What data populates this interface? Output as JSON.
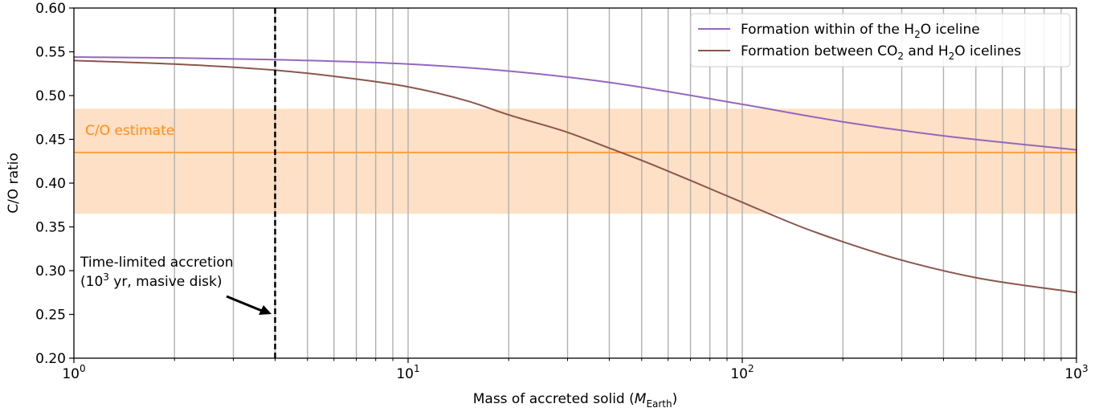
{
  "chart_data": {
    "type": "line",
    "xscale": "log",
    "xlim": [
      1,
      1000
    ],
    "ylim": [
      0.2,
      0.6
    ],
    "xlabel": "Mass of accreted solid (M_Earth)",
    "xlabel_parts": {
      "main": "Mass of accreted solid (",
      "italic": "M",
      "sub": "Earth",
      "close": ")"
    },
    "ylabel": "C/O ratio",
    "grid": "vertical minor and major lines on x",
    "x_ticks": [
      {
        "value": 1,
        "base": "10",
        "exp": "0"
      },
      {
        "value": 10,
        "base": "10",
        "exp": "1"
      },
      {
        "value": 100,
        "base": "10",
        "exp": "2"
      },
      {
        "value": 1000,
        "base": "10",
        "exp": "3"
      }
    ],
    "y_ticks": [
      "0.20",
      "0.25",
      "0.30",
      "0.35",
      "0.40",
      "0.45",
      "0.50",
      "0.55",
      "0.60"
    ],
    "legend_position": "top-right",
    "series": [
      {
        "name": "Formation within of the H2O iceline",
        "name_parts": {
          "pre": "Formation within of the H",
          "sub": "2",
          "post": "O iceline"
        },
        "color": "#9467bd",
        "x": [
          1,
          2,
          4,
          10,
          20,
          40,
          100,
          200,
          400,
          1000
        ],
        "y": [
          0.544,
          0.543,
          0.541,
          0.536,
          0.528,
          0.515,
          0.49,
          0.47,
          0.454,
          0.438
        ]
      },
      {
        "name": "Formation between CO2 and H2O icelines",
        "name_parts": {
          "pre": "Formation between CO",
          "sub1": "2",
          "mid": " and H",
          "sub2": "2",
          "post": "O icelines"
        },
        "color": "#8c564b",
        "x": [
          1,
          2,
          4,
          6,
          10,
          15,
          20,
          30,
          40,
          50,
          70,
          100,
          150,
          200,
          300,
          500,
          1000
        ],
        "y": [
          0.54,
          0.536,
          0.529,
          0.522,
          0.51,
          0.494,
          0.478,
          0.458,
          0.44,
          0.426,
          0.403,
          0.378,
          0.35,
          0.333,
          0.312,
          0.292,
          0.275
        ]
      }
    ],
    "estimate": {
      "label": "C/O estimate",
      "value": 0.435,
      "band": [
        0.365,
        0.485
      ],
      "line_color": "#ff9f40",
      "band_color": "#fde0c5",
      "label_color": "#ff8c1a"
    },
    "time_limit": {
      "x": 4,
      "line1": "Time-limited accretion",
      "line2_pre": "(10",
      "line2_exp": "3",
      "line2_post": " yr, masive disk)"
    }
  }
}
